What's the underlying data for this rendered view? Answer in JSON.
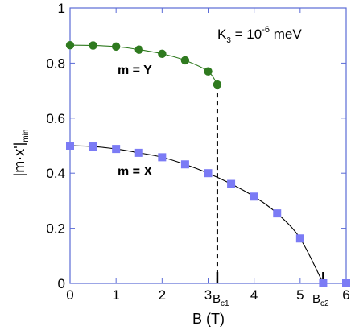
{
  "chart_data": {
    "type": "scatter",
    "title": "",
    "xlabel": "B (T)",
    "ylabel_main": "|m·x'|",
    "ylabel_sub": "min",
    "xlim": [
      0,
      6
    ],
    "ylim": [
      0,
      1
    ],
    "x_ticks": [
      {
        "value": 0,
        "label": "0"
      },
      {
        "value": 1,
        "label": "1"
      },
      {
        "value": 2,
        "label": "2"
      },
      {
        "value": 3,
        "label": "3"
      },
      {
        "value": 4,
        "label": "4"
      },
      {
        "value": 5,
        "label": "5"
      },
      {
        "value": 6,
        "label": "6"
      }
    ],
    "y_ticks": [
      {
        "value": 0,
        "label": "0"
      },
      {
        "value": 0.2,
        "label": "0.2"
      },
      {
        "value": 0.4,
        "label": "0.4"
      },
      {
        "value": 0.6,
        "label": "0.6"
      },
      {
        "value": 0.8,
        "label": "0.8"
      },
      {
        "value": 1,
        "label": "1"
      }
    ],
    "grid": false,
    "series": [
      {
        "label": "m = Y",
        "marker": "circle",
        "color": "#2f7a1f",
        "line_color": "#2f7a1f",
        "x": [
          0,
          0.5,
          1,
          1.5,
          2,
          2.5,
          3,
          3.2
        ],
        "y": [
          0.865,
          0.864,
          0.86,
          0.849,
          0.834,
          0.81,
          0.77,
          0.722
        ]
      },
      {
        "label": "m = X",
        "marker": "square",
        "color": "#7b7bf5",
        "line_color": "#000000",
        "x": [
          0,
          0.5,
          1,
          1.5,
          2,
          2.5,
          3,
          3.5,
          4,
          4.5,
          5,
          5.5,
          6
        ],
        "y": [
          0.5,
          0.497,
          0.488,
          0.474,
          0.458,
          0.432,
          0.4,
          0.361,
          0.315,
          0.254,
          0.163,
          0.0,
          0.0
        ]
      }
    ],
    "annotations": {
      "k3_base": "K",
      "k3_sub": "3",
      "k3_mid": " = 10",
      "k3_sup": "-6",
      "k3_end": " meV",
      "bc1_base": "B",
      "bc1_sub": "c1",
      "bc2_base": "B",
      "bc2_sub": "c2"
    },
    "critical_fields": {
      "bc1": 3.2,
      "bc2": 5.5
    },
    "colors": {
      "axis": "#5b6bd6",
      "dashed": "#000000"
    }
  }
}
